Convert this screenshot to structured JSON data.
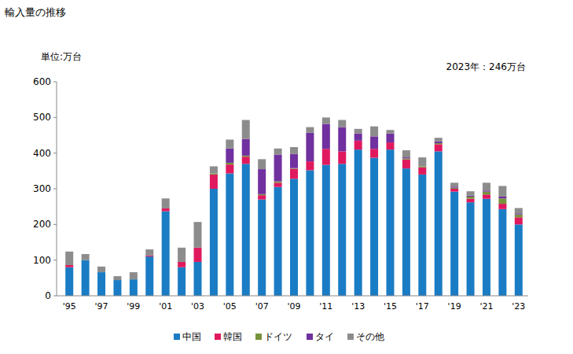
{
  "chart_data": {
    "type": "bar",
    "title": "輸入量の推移",
    "y_label": "単位:万台",
    "annotations": [
      "2023年：246万台"
    ],
    "stacked": true,
    "grid": false,
    "legend": "bottom",
    "categories": [
      "'95",
      null,
      "'97",
      null,
      "'99",
      null,
      "'01",
      null,
      "'03",
      null,
      "'05",
      null,
      "'07",
      null,
      "'09",
      null,
      "'11",
      null,
      "'13",
      null,
      "'15",
      null,
      "'17",
      null,
      "'19",
      null,
      "'21",
      null,
      "'23"
    ],
    "ylim": [
      0,
      600
    ],
    "yticks": [
      0,
      100,
      200,
      300,
      400,
      500,
      600
    ],
    "series": [
      {
        "name": "中国",
        "color": "#1a7cc4",
        "values": [
          80,
          100,
          66,
          44,
          46,
          110,
          237,
          80,
          95,
          300,
          343,
          370,
          270,
          305,
          328,
          352,
          367,
          370,
          410,
          387,
          410,
          357,
          340,
          405,
          292,
          262,
          272,
          243,
          200
        ]
      },
      {
        "name": "韓国",
        "color": "#e0195f",
        "values": [
          6,
          0,
          0,
          0,
          0,
          3,
          8,
          15,
          40,
          40,
          25,
          20,
          12,
          12,
          28,
          25,
          45,
          35,
          25,
          25,
          20,
          25,
          20,
          20,
          8,
          10,
          12,
          15,
          20
        ]
      },
      {
        "name": "ドイツ",
        "color": "#77933c",
        "values": [
          0,
          0,
          0,
          0,
          0,
          0,
          0,
          0,
          0,
          3,
          5,
          3,
          3,
          4,
          2,
          0,
          0,
          0,
          0,
          0,
          0,
          3,
          3,
          3,
          3,
          6,
          8,
          15,
          8
        ]
      },
      {
        "name": "タイ",
        "color": "#7030a0",
        "values": [
          0,
          0,
          0,
          0,
          0,
          0,
          0,
          0,
          0,
          0,
          40,
          47,
          70,
          75,
          40,
          80,
          70,
          68,
          20,
          35,
          25,
          3,
          0,
          5,
          3,
          3,
          3,
          5,
          3
        ]
      },
      {
        "name": "その他",
        "color": "#8c8c8c",
        "values": [
          38,
          17,
          16,
          11,
          20,
          17,
          28,
          40,
          72,
          20,
          25,
          53,
          28,
          17,
          19,
          16,
          18,
          20,
          13,
          28,
          10,
          20,
          25,
          10,
          11,
          12,
          22,
          30,
          15
        ]
      }
    ]
  }
}
